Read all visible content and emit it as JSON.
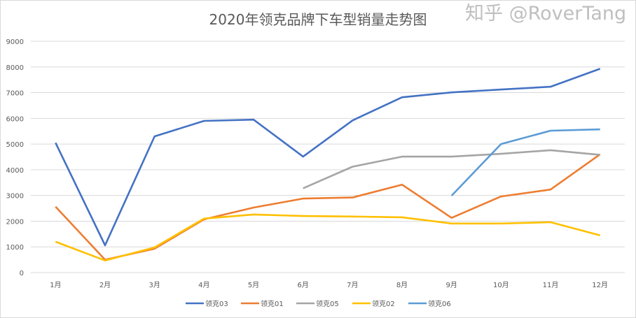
{
  "watermark": "知乎 @RoverTang",
  "chart_data": {
    "type": "line",
    "title": "2020年领克品牌下车型销量走势图",
    "categories": [
      "1月",
      "2月",
      "3月",
      "4月",
      "5月",
      "6月",
      "7月",
      "8月",
      "9月",
      "10月",
      "11月",
      "12月"
    ],
    "ylim": [
      0,
      9000
    ],
    "yticks": [
      0,
      1000,
      2000,
      3000,
      4000,
      5000,
      6000,
      7000,
      8000,
      9000
    ],
    "grid": true,
    "legend": "bottom",
    "series": [
      {
        "name": "领克03",
        "color": "#4472c4",
        "values": [
          5050,
          1060,
          5300,
          5900,
          5950,
          4510,
          5920,
          6820,
          7010,
          7120,
          7230,
          7930
        ]
      },
      {
        "name": "领克01",
        "color": "#ed7d31",
        "values": [
          2560,
          500,
          930,
          2070,
          2530,
          2880,
          2920,
          3420,
          2130,
          2960,
          3230,
          4600
        ]
      },
      {
        "name": "领克05",
        "color": "#a5a5a5",
        "values": [
          null,
          null,
          null,
          null,
          null,
          3280,
          4120,
          4510,
          4510,
          4620,
          4760,
          4580
        ]
      },
      {
        "name": "领克02",
        "color": "#ffc000",
        "values": [
          1200,
          470,
          980,
          2100,
          2260,
          2200,
          2180,
          2150,
          1910,
          1910,
          1960,
          1450
        ]
      },
      {
        "name": "领克06",
        "color": "#5b9bd5",
        "values": [
          null,
          null,
          null,
          null,
          null,
          null,
          null,
          null,
          2990,
          5000,
          5520,
          5570
        ]
      }
    ]
  }
}
